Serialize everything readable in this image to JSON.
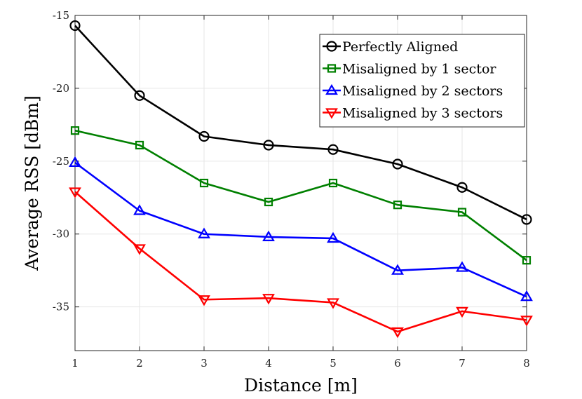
{
  "chart_data": {
    "type": "line",
    "title": "",
    "xlabel": "Distance [m]",
    "ylabel": "Average RSS [dBm]",
    "x": [
      1,
      2,
      3,
      4,
      5,
      6,
      7,
      8
    ],
    "xlim": [
      1,
      8
    ],
    "ylim": [
      -38,
      -15
    ],
    "xticks": [
      1,
      2,
      3,
      4,
      5,
      6,
      7,
      8
    ],
    "yticks": [
      -15,
      -20,
      -25,
      -30,
      -35
    ],
    "grid": true,
    "legend_position": "top-right",
    "series": [
      {
        "name": "Perfectly Aligned",
        "color": "#000000",
        "marker": "circle",
        "values": [
          -15.7,
          -20.5,
          -23.3,
          -23.9,
          -24.2,
          -25.2,
          -26.8,
          -29.0
        ]
      },
      {
        "name": "Misaligned by 1 sector",
        "color": "#008000",
        "marker": "square",
        "values": [
          -22.9,
          -23.9,
          -26.5,
          -27.8,
          -26.5,
          -28.0,
          -28.5,
          -31.8
        ]
      },
      {
        "name": "Misaligned by 2 sectors",
        "color": "#0000ff",
        "marker": "triangle-up",
        "values": [
          -25.1,
          -28.4,
          -30.0,
          -30.2,
          -30.3,
          -32.5,
          -32.3,
          -34.3
        ]
      },
      {
        "name": "Misaligned by 3 sectors",
        "color": "#ff0000",
        "marker": "triangle-down",
        "values": [
          -27.1,
          -31.0,
          -34.5,
          -34.4,
          -34.7,
          -36.7,
          -35.3,
          -35.9
        ]
      }
    ]
  }
}
